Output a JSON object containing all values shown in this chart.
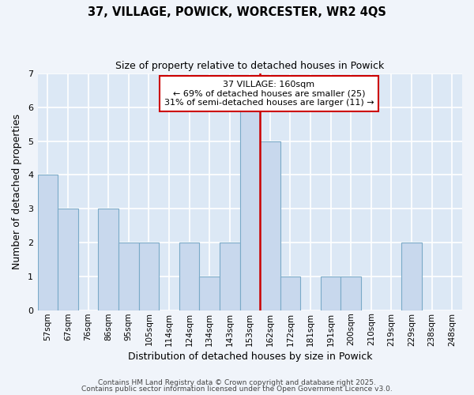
{
  "title": "37, VILLAGE, POWICK, WORCESTER, WR2 4QS",
  "subtitle": "Size of property relative to detached houses in Powick",
  "xlabel": "Distribution of detached houses by size in Powick",
  "ylabel": "Number of detached properties",
  "bar_labels": [
    "57sqm",
    "67sqm",
    "76sqm",
    "86sqm",
    "95sqm",
    "105sqm",
    "114sqm",
    "124sqm",
    "134sqm",
    "143sqm",
    "153sqm",
    "162sqm",
    "172sqm",
    "181sqm",
    "191sqm",
    "200sqm",
    "210sqm",
    "219sqm",
    "229sqm",
    "238sqm",
    "248sqm"
  ],
  "bar_values": [
    4,
    3,
    0,
    3,
    2,
    2,
    0,
    2,
    1,
    2,
    6,
    5,
    1,
    0,
    1,
    1,
    0,
    0,
    2,
    0,
    0
  ],
  "bar_color": "#c8d8ed",
  "bar_edge_color": "#7aaac8",
  "background_color": "#dce8f5",
  "grid_color": "#ffffff",
  "vline_color": "#cc0000",
  "ylim": [
    0,
    7
  ],
  "yticks": [
    0,
    1,
    2,
    3,
    4,
    5,
    6,
    7
  ],
  "annotation_text": "37 VILLAGE: 160sqm\n← 69% of detached houses are smaller (25)\n31% of semi-detached houses are larger (11) →",
  "annotation_box_color": "#ffffff",
  "annotation_border_color": "#cc0000",
  "footnote1": "Contains HM Land Registry data © Crown copyright and database right 2025.",
  "footnote2": "Contains public sector information licensed under the Open Government Licence v3.0.",
  "vline_position": 10.5,
  "fig_facecolor": "#f0f4fa"
}
